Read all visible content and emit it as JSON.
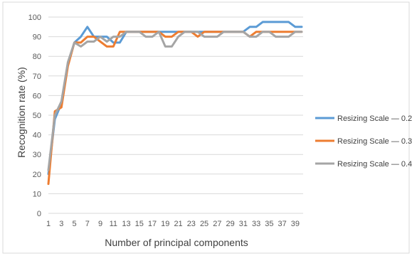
{
  "chart_data": {
    "type": "line",
    "title": "",
    "xlabel": "Number of principal components",
    "ylabel": "Recognition rate (%)",
    "x": [
      1,
      2,
      3,
      4,
      5,
      6,
      7,
      8,
      9,
      10,
      11,
      12,
      13,
      14,
      15,
      16,
      17,
      18,
      19,
      20,
      21,
      22,
      23,
      24,
      25,
      26,
      27,
      28,
      29,
      30,
      31,
      32,
      33,
      34,
      35,
      36,
      37,
      38,
      39,
      40
    ],
    "x_tick_labels": [
      "1",
      "3",
      "5",
      "7",
      "9",
      "11",
      "13",
      "15",
      "17",
      "19",
      "21",
      "23",
      "25",
      "27",
      "29",
      "31",
      "33",
      "35",
      "37",
      "39"
    ],
    "y_tick_labels": [
      "0",
      "10",
      "20",
      "30",
      "40",
      "50",
      "60",
      "70",
      "80",
      "90",
      "100"
    ],
    "ylim": [
      0,
      100
    ],
    "grid": "horizontal",
    "legend_position": "right",
    "series": [
      {
        "name": "Resizing Scale — 0.2",
        "color": "#5b9bd5",
        "values": [
          20,
          48,
          56,
          76,
          87,
          90,
          95,
          90,
          90,
          90,
          87,
          87,
          92.5,
          92.5,
          92.5,
          92.5,
          92.5,
          92.5,
          92.5,
          92.5,
          92.5,
          92.5,
          92.5,
          92.5,
          92.5,
          92.5,
          92.5,
          92.5,
          92.5,
          92.5,
          92.5,
          95,
          95,
          97.5,
          97.5,
          97.5,
          97.5,
          97.5,
          95,
          95
        ]
      },
      {
        "name": "Resizing Scale — 0.3",
        "color": "#ed7d31",
        "values": [
          15,
          52,
          54,
          75,
          87,
          87,
          90,
          90,
          87.5,
          85,
          85,
          92.5,
          92.5,
          92.5,
          92.5,
          92.5,
          92.5,
          92.5,
          90,
          90,
          92.5,
          92.5,
          92.5,
          90,
          92.5,
          92.5,
          92.5,
          92.5,
          92.5,
          92.5,
          92.5,
          90,
          92.5,
          92.5,
          92.5,
          92.5,
          92.5,
          92.5,
          92.5,
          92.5
        ]
      },
      {
        "name": "Resizing Scale — 0.4",
        "color": "#a5a5a5",
        "values": [
          22,
          50,
          57,
          77,
          87,
          85,
          87.5,
          87.5,
          90,
          87.5,
          90,
          90,
          92.5,
          92.5,
          92.5,
          90,
          90,
          92.5,
          85,
          85,
          90,
          92.5,
          92.5,
          92.5,
          90,
          90,
          90,
          92.5,
          92.5,
          92.5,
          92.5,
          90,
          90,
          92.5,
          92.5,
          90,
          90,
          90,
          92.5,
          92.5
        ]
      }
    ]
  }
}
